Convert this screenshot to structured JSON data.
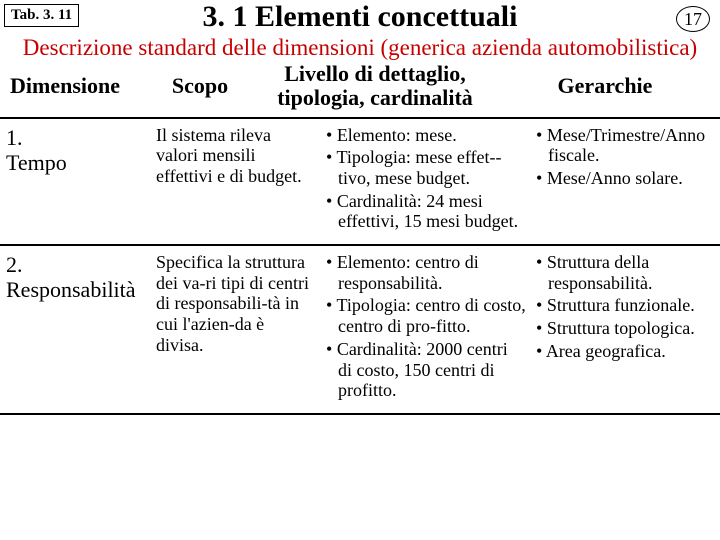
{
  "tab_label": "Tab. 3. 11",
  "page_number": "17",
  "title": "3. 1 Elementi concettuali",
  "subtitle": "Descrizione standard delle dimensioni (generica azienda automobilistica)",
  "headers": {
    "col1": "Dimensione",
    "col2": "Scopo",
    "col3_line1": "Livello di dettaglio,",
    "col3_line2": "tipologia, cardinalità",
    "col4": "Gerarchie"
  },
  "rows": [
    {
      "dim_num": "1.",
      "dim_name": "Tempo",
      "scopo": "Il sistema rileva valori mensili effettivi e di budget.",
      "livello": [
        "Elemento: mese.",
        "Tipologia: mese effet-­tivo, mese budget.",
        "Cardinalità: 24 mesi effettivi, 15 mesi budget."
      ],
      "gerarchie": [
        "Mese/Trimestre/Anno fiscale.",
        "Mese/Anno solare."
      ]
    },
    {
      "dim_num": "2.",
      "dim_name": "Responsabilità",
      "scopo": "Specifica la struttura dei va-­ri tipi di centri di responsabili-­tà in cui l'azien-­da è divisa.",
      "livello": [
        "Elemento: centro di responsabilità.",
        "Tipologia: centro di costo, centro di pro-­fitto.",
        "Cardinalità: 2000 centri di costo, 150 centri di profitto."
      ],
      "gerarchie": [
        "Struttura della responsabilità.",
        "Struttura funzionale.",
        "Struttura topologica.",
        "Area geografica."
      ]
    }
  ]
}
